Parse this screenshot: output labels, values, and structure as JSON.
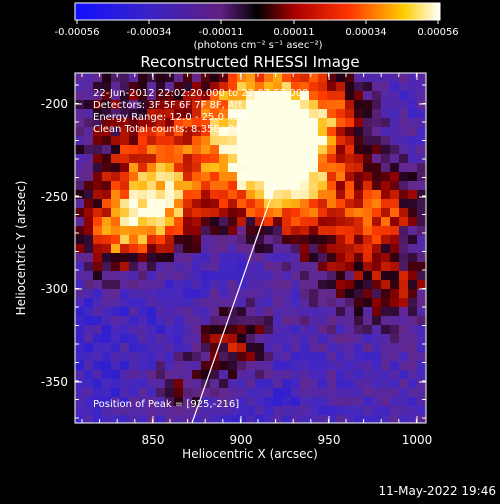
{
  "colorbar": {
    "tick_labels": [
      "-0.00056",
      "-0.00034",
      "-0.00011",
      "0.00011",
      "0.00034",
      "0.00056"
    ],
    "units_label": "(photons cm⁻² s⁻¹ asec⁻²)"
  },
  "title": "Reconstructed RHESSI Image",
  "info_lines": [
    "22-Jun-2012 22:02:20.000 to 22:07:52.000",
    "Detectors: 3F 5F 6F 7F 8F, Att 0",
    "Energy Range: 12.0 - 25.0 keV",
    "Clean     Total counts: 8.35E+03"
  ],
  "peak_label": "Position of Peak = [925,-216]",
  "axes": {
    "xlabel": "Heliocentric X (arcsec)",
    "ylabel": "Heliocentric Y (arcsec)",
    "xticks": [
      "850",
      "900",
      "950",
      "1000"
    ],
    "yticks": [
      "-200",
      "-250",
      "-300",
      "-350"
    ]
  },
  "timestamp": "11-May-2022 19:46"
}
